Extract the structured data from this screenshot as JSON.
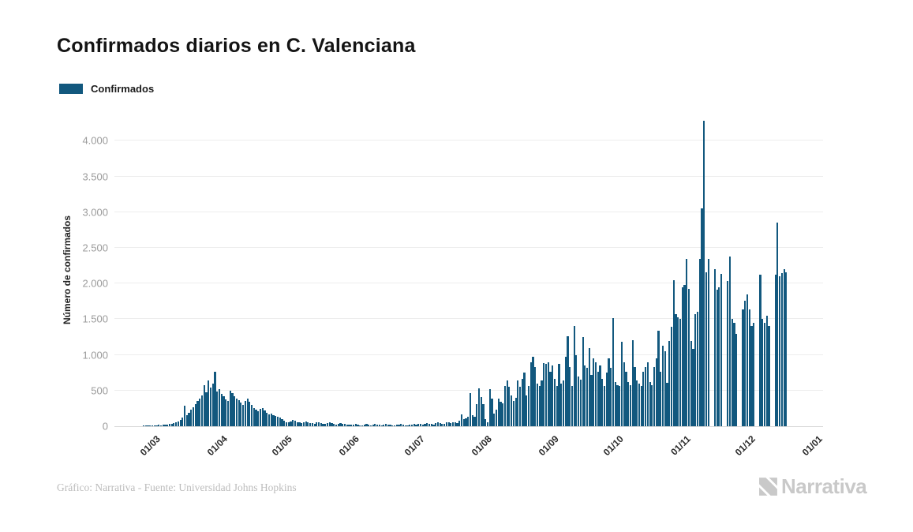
{
  "title": "Confirmados diarios en C. Valenciana",
  "legend": {
    "label": "Confirmados",
    "color": "#12587E"
  },
  "y_axis": {
    "title": "Número de confirmados",
    "ticks": [
      "0",
      "500",
      "1.000",
      "1.500",
      "2.000",
      "2.500",
      "3.000",
      "3.500",
      "4.000"
    ],
    "tick_values": [
      0,
      500,
      1000,
      1500,
      2000,
      2500,
      3000,
      3500,
      4000
    ]
  },
  "x_axis": {
    "ticks": [
      "01/03",
      "01/04",
      "01/05",
      "01/06",
      "01/07",
      "01/08",
      "01/09",
      "01/10",
      "01/11",
      "01/12",
      "01/01"
    ],
    "tick_day_offsets": [
      3,
      34,
      64,
      95,
      125,
      156,
      187,
      217,
      248,
      278,
      309
    ]
  },
  "footer": {
    "credit": "Gráfico: Narrativa - Fuente: Universidad Johns Hopkins",
    "logo_text": "Narrativa"
  },
  "chart_data": {
    "type": "bar",
    "title": "Confirmados diarios en C. Valenciana",
    "ylabel": "Número de confirmados",
    "series_name": "Confirmados",
    "bar_color": "#12587E",
    "grid": "horizontal",
    "legend_position": "top-left",
    "start_date": "2020-02-27",
    "frequency": "daily",
    "ylim": [
      0,
      4370
    ],
    "values": [
      5,
      8,
      6,
      10,
      12,
      9,
      14,
      18,
      15,
      22,
      18,
      25,
      35,
      30,
      45,
      55,
      70,
      90,
      120,
      290,
      150,
      190,
      230,
      270,
      310,
      350,
      390,
      430,
      570,
      480,
      640,
      540,
      600,
      760,
      490,
      520,
      450,
      420,
      380,
      350,
      500,
      460,
      420,
      390,
      360,
      330,
      300,
      350,
      390,
      340,
      300,
      260,
      230,
      210,
      240,
      260,
      220,
      190,
      170,
      180,
      150,
      140,
      130,
      120,
      100,
      80,
      60,
      50,
      70,
      90,
      80,
      60,
      50,
      40,
      55,
      70,
      60,
      45,
      40,
      35,
      50,
      60,
      45,
      35,
      30,
      40,
      50,
      40,
      30,
      25,
      35,
      45,
      35,
      30,
      25,
      20,
      25,
      18,
      30,
      22,
      15,
      12,
      20,
      28,
      24,
      16,
      22,
      30,
      26,
      18,
      14,
      24,
      32,
      26,
      20,
      16,
      12,
      18,
      26,
      30,
      22,
      16,
      14,
      20,
      26,
      30,
      24,
      36,
      30,
      22,
      28,
      40,
      36,
      30,
      26,
      44,
      50,
      44,
      38,
      32,
      56,
      50,
      44,
      60,
      54,
      48,
      80,
      170,
      95,
      115,
      135,
      460,
      160,
      130,
      310,
      530,
      410,
      310,
      95,
      60,
      520,
      390,
      180,
      230,
      390,
      340,
      320,
      560,
      640,
      550,
      430,
      350,
      400,
      640,
      550,
      660,
      750,
      430,
      560,
      900,
      970,
      830,
      600,
      560,
      640,
      880,
      870,
      900,
      760,
      850,
      660,
      560,
      870,
      600,
      640,
      970,
      1260,
      830,
      560,
      1400,
      1000,
      700,
      650,
      1250,
      850,
      820,
      1100,
      720,
      950,
      900,
      760,
      850,
      660,
      560,
      750,
      950,
      820,
      1520,
      620,
      580,
      560,
      1180,
      900,
      760,
      620,
      580,
      1210,
      830,
      640,
      600,
      560,
      760,
      830,
      900,
      620,
      580,
      830,
      950,
      1340,
      760,
      1130,
      1050,
      610,
      1200,
      1390,
      2050,
      1570,
      1530,
      1510,
      1950,
      1980,
      2350,
      1920,
      1190,
      1080,
      1570,
      1600,
      2350,
      3050,
      4280,
      2160,
      2350,
      0,
      0,
      2200,
      1915,
      1950,
      2130,
      0,
      0,
      2040,
      2380,
      1505,
      1450,
      1300,
      0,
      0,
      1640,
      1760,
      1850,
      1640,
      1400,
      1450,
      0,
      0,
      2120,
      1500,
      1450,
      1550,
      1400,
      0,
      0,
      2120,
      2850,
      2100,
      2150,
      2200,
      2160
    ]
  }
}
